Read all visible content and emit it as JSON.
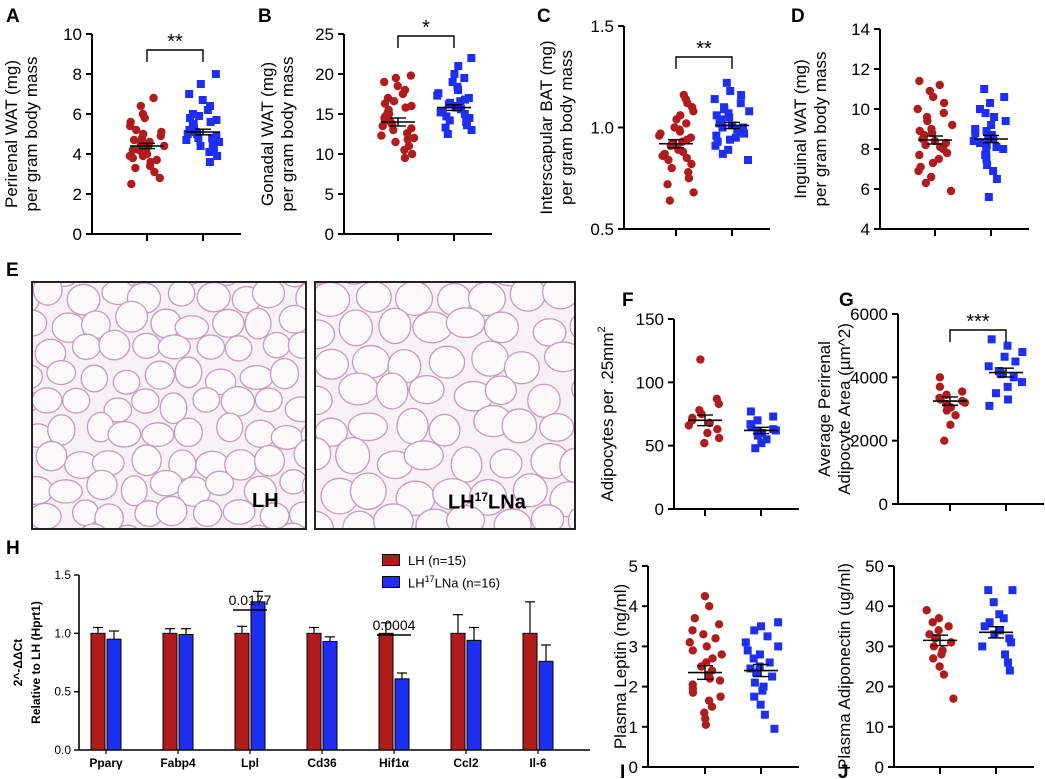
{
  "colors": {
    "lh": "#b01c1c",
    "lhna": "#1f2ff2"
  },
  "panel_letters": [
    "A",
    "B",
    "C",
    "D",
    "E",
    "F",
    "G",
    "H",
    "I",
    "J"
  ],
  "micrographs": [
    {
      "label": "LH",
      "sup": "",
      "suffix": ""
    },
    {
      "label": "LH",
      "sup": "17",
      "suffix": "LNa"
    }
  ],
  "legend": [
    {
      "main": "LH (n=15)",
      "sup": "",
      "tail": "",
      "color": "lh"
    },
    {
      "main": "LH",
      "sup": "17",
      "tail": "LNa (n=16)",
      "color": "lhna"
    }
  ],
  "chart_data": [
    {
      "id": "A",
      "type": "scatter",
      "ylabel": [
        "Perirenal WAT (mg)",
        "per gram body mass"
      ],
      "ylim": [
        0,
        10
      ],
      "yticks": [
        0,
        2,
        4,
        6,
        8,
        10
      ],
      "sig": "**",
      "groups": [
        {
          "name": "LH",
          "color": "lh",
          "shape": "circle",
          "mean": 4.4,
          "sem": 0.13,
          "values": [
            2.5,
            2.8,
            3.1,
            3.3,
            3.4,
            3.6,
            3.7,
            3.8,
            3.9,
            3.9,
            4.0,
            4.1,
            4.1,
            4.2,
            4.2,
            4.3,
            4.3,
            4.4,
            4.4,
            4.5,
            4.5,
            4.6,
            4.6,
            4.7,
            4.8,
            4.9,
            5.0,
            5.1,
            5.2,
            5.4,
            5.6,
            5.8,
            6.0,
            6.4,
            6.8
          ]
        },
        {
          "name": "LH17LNa",
          "color": "lhna",
          "shape": "square",
          "mean": 5.1,
          "sem": 0.14,
          "values": [
            3.6,
            3.9,
            4.1,
            4.3,
            4.4,
            4.5,
            4.6,
            4.7,
            4.8,
            4.8,
            4.9,
            5.0,
            5.0,
            5.1,
            5.1,
            5.2,
            5.2,
            5.3,
            5.4,
            5.5,
            5.6,
            5.7,
            5.8,
            5.9,
            6.0,
            6.2,
            6.4,
            6.7,
            7.0,
            7.5,
            8.0
          ]
        }
      ]
    },
    {
      "id": "B",
      "type": "scatter",
      "ylabel": [
        "Gonadal WAT (mg)",
        "per gram body mass"
      ],
      "ylim": [
        0,
        25
      ],
      "yticks": [
        0,
        5,
        10,
        15,
        20,
        25
      ],
      "sig": "*",
      "groups": [
        {
          "name": "LH",
          "color": "lh",
          "shape": "circle",
          "mean": 14.0,
          "sem": 0.5,
          "values": [
            9.5,
            10.0,
            10.5,
            11.0,
            11.5,
            11.8,
            12.0,
            12.3,
            12.6,
            13.0,
            13.2,
            13.5,
            13.7,
            14.0,
            14.2,
            14.5,
            14.7,
            15.0,
            15.2,
            15.5,
            15.8,
            16.0,
            16.3,
            16.6,
            17.0,
            17.5,
            18.0,
            18.5,
            19.0,
            19.5,
            19.8
          ]
        },
        {
          "name": "LH17LNa",
          "color": "lhna",
          "shape": "square",
          "mean": 15.8,
          "sem": 0.35,
          "values": [
            12.5,
            13.0,
            13.3,
            13.6,
            14.0,
            14.2,
            14.5,
            14.7,
            15.0,
            15.2,
            15.4,
            15.6,
            15.8,
            16.0,
            16.2,
            16.4,
            16.6,
            16.8,
            17.0,
            17.3,
            17.6,
            18.0,
            18.4,
            19.0,
            19.5,
            20.0,
            21.0,
            22.0
          ]
        }
      ]
    },
    {
      "id": "C",
      "type": "scatter",
      "ylabel": [
        "Interscapular BAT (mg)",
        "per gram body mass"
      ],
      "ylim": [
        0.5,
        1.5
      ],
      "yticks": [
        0.5,
        1.0,
        1.5
      ],
      "sig": "**",
      "groups": [
        {
          "name": "LH",
          "color": "lh",
          "shape": "circle",
          "mean": 0.92,
          "sem": 0.02,
          "values": [
            0.64,
            0.68,
            0.72,
            0.75,
            0.78,
            0.8,
            0.82,
            0.84,
            0.85,
            0.86,
            0.87,
            0.88,
            0.89,
            0.9,
            0.91,
            0.92,
            0.93,
            0.94,
            0.95,
            0.96,
            0.97,
            0.98,
            0.99,
            1.0,
            1.02,
            1.04,
            1.06,
            1.08,
            1.1,
            1.12,
            1.14,
            1.16
          ]
        },
        {
          "name": "LH17LNa",
          "color": "lhna",
          "shape": "square",
          "mean": 1.01,
          "sem": 0.015,
          "values": [
            0.84,
            0.87,
            0.89,
            0.91,
            0.93,
            0.94,
            0.95,
            0.96,
            0.97,
            0.98,
            0.99,
            1.0,
            1.0,
            1.01,
            1.02,
            1.03,
            1.04,
            1.05,
            1.06,
            1.07,
            1.08,
            1.09,
            1.1,
            1.12,
            1.14,
            1.16,
            1.18,
            1.22
          ]
        }
      ]
    },
    {
      "id": "D",
      "type": "scatter",
      "ylabel": [
        "Inguinal WAT (mg)",
        "per gram body mass"
      ],
      "ylim": [
        4,
        14
      ],
      "yticks": [
        4,
        6,
        8,
        10,
        12,
        14
      ],
      "sig": "",
      "groups": [
        {
          "name": "LH",
          "color": "lh",
          "shape": "circle",
          "mean": 8.45,
          "sem": 0.2,
          "values": [
            5.9,
            6.3,
            6.6,
            6.9,
            7.1,
            7.3,
            7.5,
            7.7,
            7.8,
            8.0,
            8.1,
            8.2,
            8.3,
            8.4,
            8.5,
            8.6,
            8.7,
            8.8,
            8.9,
            9.0,
            9.2,
            9.4,
            9.6,
            9.8,
            10.0,
            10.3,
            10.6,
            10.9,
            11.2,
            11.4
          ]
        },
        {
          "name": "LH17LNa",
          "color": "lhna",
          "shape": "square",
          "mean": 8.5,
          "sem": 0.18,
          "values": [
            5.6,
            6.5,
            6.9,
            7.2,
            7.5,
            7.7,
            7.9,
            8.0,
            8.1,
            8.2,
            8.3,
            8.4,
            8.5,
            8.6,
            8.7,
            8.8,
            8.9,
            9.0,
            9.2,
            9.4,
            9.6,
            9.8,
            10.0,
            10.3,
            10.6,
            11.0
          ]
        }
      ]
    },
    {
      "id": "F",
      "type": "scatter",
      "ylabel": [
        "Adipocytes per .25mm",
        "2"
      ],
      "ylim": [
        0,
        150
      ],
      "yticks": [
        0,
        50,
        100,
        150
      ],
      "sig": "",
      "groups": [
        {
          "name": "LH",
          "color": "lh",
          "shape": "circle",
          "mean": 70,
          "sem": 4.2,
          "values": [
            52,
            56,
            60,
            63,
            66,
            68,
            70,
            72,
            75,
            78,
            83,
            87,
            118
          ]
        },
        {
          "name": "LH17LNa",
          "color": "lhna",
          "shape": "square",
          "mean": 62,
          "sem": 2.5,
          "values": [
            48,
            52,
            55,
            58,
            60,
            61,
            62,
            63,
            65,
            67,
            70,
            73,
            77
          ]
        }
      ]
    },
    {
      "id": "G",
      "type": "scatter",
      "ylabel": [
        "Average Perirenal",
        "Adipocyte Area (µm^2)"
      ],
      "ylim": [
        0,
        6000
      ],
      "yticks": [
        0,
        2000,
        4000,
        6000
      ],
      "sig": "***",
      "groups": [
        {
          "name": "LH",
          "color": "lh",
          "shape": "circle",
          "mean": 3250,
          "sem": 130,
          "values": [
            2000,
            2500,
            2800,
            2950,
            3050,
            3150,
            3200,
            3250,
            3300,
            3350,
            3450,
            3550,
            3700,
            4000
          ]
        },
        {
          "name": "LH17LNa",
          "color": "lhna",
          "shape": "square",
          "mean": 4150,
          "sem": 140,
          "values": [
            3100,
            3300,
            3500,
            3700,
            3850,
            4000,
            4100,
            4150,
            4200,
            4350,
            4500,
            4650,
            4800,
            5000,
            5200
          ]
        }
      ]
    },
    {
      "id": "H",
      "type": "bar",
      "ylabel": [
        "2^-ΔΔCt",
        "Relative to LH (Hprt1)"
      ],
      "ylim": [
        0,
        1.5
      ],
      "yticks": [
        0.0,
        0.5,
        1.0,
        1.5
      ],
      "categories": [
        "Pparγ",
        "Fabp4",
        "Lpl",
        "Cd36",
        "Hif1α",
        "Ccl2",
        "Il-6"
      ],
      "series": [
        {
          "name": "LH (n=15)",
          "color": "lh",
          "values": [
            1.0,
            1.0,
            1.0,
            1.0,
            1.0,
            1.0,
            1.0
          ],
          "err": [
            0.05,
            0.04,
            0.06,
            0.05,
            0.09,
            0.16,
            0.27
          ]
        },
        {
          "name": "LH17LNa (n=16)",
          "color": "lhna",
          "values": [
            0.95,
            0.99,
            1.27,
            0.93,
            0.61,
            0.94,
            0.76
          ],
          "err": [
            0.07,
            0.05,
            0.09,
            0.04,
            0.05,
            0.11,
            0.14
          ]
        }
      ],
      "annotations": [
        {
          "category": "Lpl",
          "text": "0.0177"
        },
        {
          "category": "Hif1α",
          "text": "0.0004"
        }
      ]
    },
    {
      "id": "I",
      "type": "scatter",
      "ylabel": [
        "Plasma Leptin  (ng/ml)"
      ],
      "ylim": [
        0,
        5
      ],
      "yticks": [
        0,
        1,
        2,
        3,
        4,
        5
      ],
      "sig": "",
      "groups": [
        {
          "name": "LH",
          "color": "lh",
          "shape": "circle",
          "mean": 2.35,
          "sem": 0.17,
          "values": [
            1.05,
            1.2,
            1.35,
            1.5,
            1.65,
            1.75,
            1.85,
            1.95,
            2.05,
            2.15,
            2.2,
            2.3,
            2.4,
            2.5,
            2.6,
            2.7,
            2.8,
            2.9,
            3.0,
            3.1,
            3.2,
            3.3,
            3.4,
            3.55,
            3.7,
            4.0,
            4.25
          ]
        },
        {
          "name": "LH17LNa",
          "color": "lhna",
          "shape": "square",
          "mean": 2.4,
          "sem": 0.15,
          "values": [
            0.95,
            1.3,
            1.55,
            1.75,
            1.9,
            2.0,
            2.1,
            2.25,
            2.35,
            2.45,
            2.5,
            2.6,
            2.7,
            2.8,
            2.9,
            3.0,
            3.1,
            3.25,
            3.4,
            3.5,
            3.6
          ]
        }
      ]
    },
    {
      "id": "J",
      "type": "scatter",
      "ylabel": [
        "Plasma Adiponectin (ug/ml)"
      ],
      "ylim": [
        0,
        50
      ],
      "yticks": [
        0,
        10,
        20,
        30,
        40,
        50
      ],
      "sig": "",
      "groups": [
        {
          "name": "LH",
          "color": "lh",
          "shape": "circle",
          "mean": 31.5,
          "sem": 1.3,
          "values": [
            17,
            23,
            25,
            27,
            28,
            29,
            30,
            31,
            32,
            33,
            34,
            35,
            36,
            37,
            39
          ]
        },
        {
          "name": "LH17LNa",
          "color": "lhna",
          "shape": "square",
          "mean": 33.5,
          "sem": 1.4,
          "values": [
            24,
            26,
            28,
            30,
            31,
            32,
            33,
            34,
            35,
            36,
            37,
            38,
            41,
            44,
            44
          ]
        }
      ]
    }
  ]
}
